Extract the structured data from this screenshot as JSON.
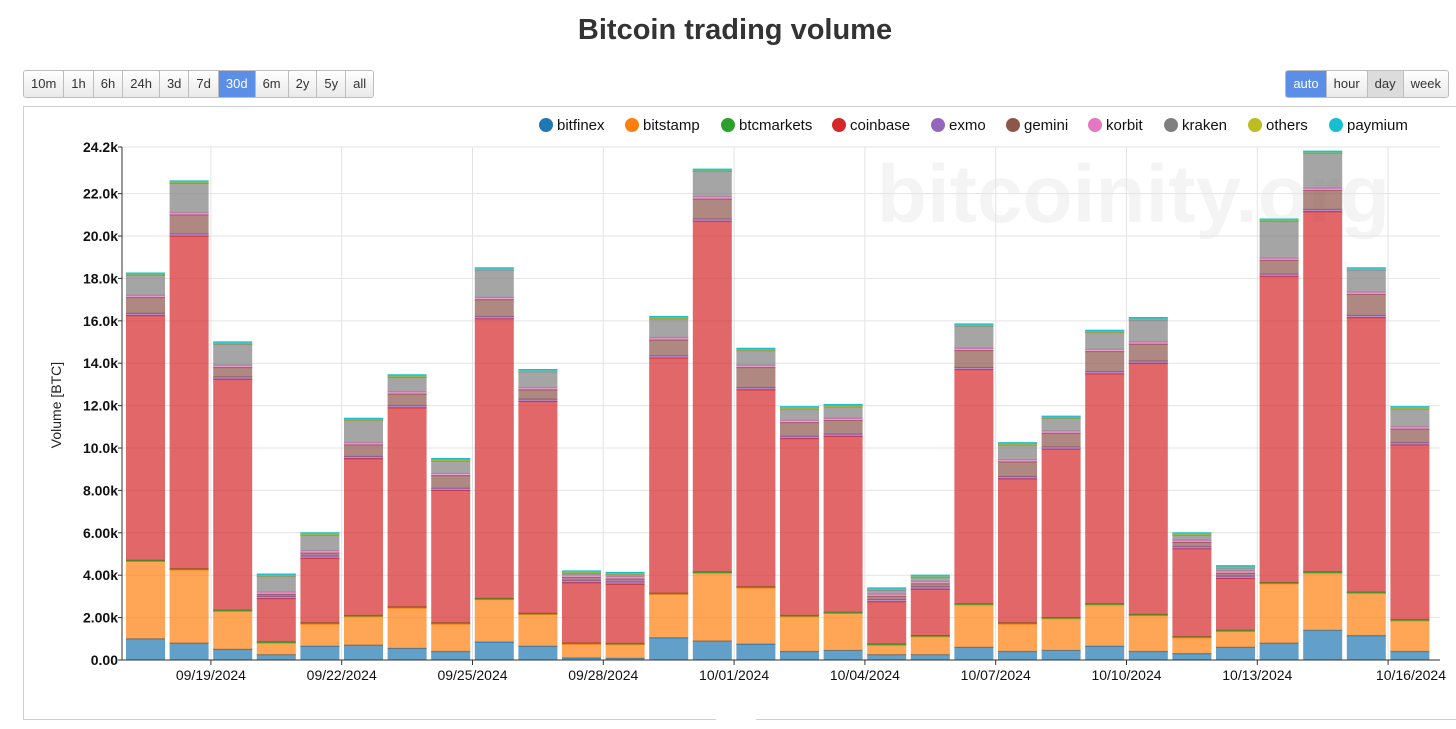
{
  "page": {
    "title": "Bitcoin trading volume"
  },
  "range_buttons": [
    {
      "label": "10m",
      "active": false
    },
    {
      "label": "1h",
      "active": false
    },
    {
      "label": "6h",
      "active": false
    },
    {
      "label": "24h",
      "active": false
    },
    {
      "label": "3d",
      "active": false
    },
    {
      "label": "7d",
      "active": false
    },
    {
      "label": "30d",
      "active": true
    },
    {
      "label": "6m",
      "active": false
    },
    {
      "label": "2y",
      "active": false
    },
    {
      "label": "5y",
      "active": false
    },
    {
      "label": "all",
      "active": false
    }
  ],
  "interval_buttons": [
    {
      "label": "auto",
      "active": true
    },
    {
      "label": "hour",
      "active": false
    },
    {
      "label": "day",
      "pressed": true
    },
    {
      "label": "week",
      "active": false
    }
  ],
  "watermark": "bitcoinity.org",
  "chart_data": {
    "type": "bar",
    "stacked": true,
    "title": "Bitcoin trading volume",
    "xlabel": "",
    "ylabel": "Volume [BTC]",
    "ylim": [
      0,
      24200
    ],
    "y_tick_values": [
      0,
      2000,
      4000,
      6000,
      8000,
      10000,
      12000,
      14000,
      16000,
      18000,
      20000,
      22000,
      24200
    ],
    "y_tick_labels": [
      "0.00",
      "2.00k",
      "4.00k",
      "6.00k",
      "8.00k",
      "10.0k",
      "12.0k",
      "14.0k",
      "16.0k",
      "18.0k",
      "20.0k",
      "22.0k",
      "24.2k"
    ],
    "x_tick_labels": [
      {
        "index": 2,
        "label": "09/19/2024"
      },
      {
        "index": 5,
        "label": "09/22/2024"
      },
      {
        "index": 8,
        "label": "09/25/2024"
      },
      {
        "index": 11,
        "label": "09/28/2024"
      },
      {
        "index": 14,
        "label": "10/01/2024"
      },
      {
        "index": 17,
        "label": "10/04/2024"
      },
      {
        "index": 20,
        "label": "10/07/2024"
      },
      {
        "index": 23,
        "label": "10/10/2024"
      },
      {
        "index": 26,
        "label": "10/13/2024"
      },
      {
        "index": 29,
        "label": "10/16/2024"
      }
    ],
    "categories": [
      "09/17/2024",
      "09/18/2024",
      "09/19/2024",
      "09/20/2024",
      "09/21/2024",
      "09/22/2024",
      "09/23/2024",
      "09/24/2024",
      "09/25/2024",
      "09/26/2024",
      "09/27/2024",
      "09/28/2024",
      "09/29/2024",
      "09/30/2024",
      "10/01/2024",
      "10/02/2024",
      "10/03/2024",
      "10/04/2024",
      "10/05/2024",
      "10/06/2024",
      "10/07/2024",
      "10/08/2024",
      "10/09/2024",
      "10/10/2024",
      "10/11/2024",
      "10/12/2024",
      "10/13/2024",
      "10/14/2024",
      "10/15/2024",
      "10/16/2024"
    ],
    "legend": {
      "placement": "top-right"
    },
    "grid": true,
    "series": [
      {
        "name": "bitfinex",
        "color": "#1f77b4",
        "values": [
          1000,
          800,
          500,
          250,
          650,
          700,
          550,
          400,
          850,
          650,
          100,
          80,
          1050,
          900,
          750,
          400,
          450,
          250,
          250,
          600,
          400,
          450,
          650,
          400,
          300,
          600,
          800,
          1400,
          1150,
          400
        ]
      },
      {
        "name": "bitstamp",
        "color": "#ff7f0e",
        "values": [
          3650,
          3450,
          1800,
          550,
          1050,
          1350,
          1900,
          1300,
          2000,
          1500,
          650,
          650,
          2050,
          3200,
          2650,
          1650,
          1750,
          450,
          850,
          2000,
          1300,
          1500,
          1950,
          1700,
          750,
          750,
          2800,
          2700,
          2000,
          1450
        ]
      },
      {
        "name": "btcmarkets",
        "color": "#2ca02c",
        "values": [
          50,
          50,
          50,
          50,
          50,
          50,
          50,
          50,
          50,
          50,
          50,
          50,
          50,
          50,
          50,
          50,
          50,
          50,
          50,
          50,
          50,
          50,
          50,
          50,
          50,
          50,
          50,
          50,
          50,
          50
        ]
      },
      {
        "name": "coinbase",
        "color": "#d62728",
        "values": [
          11550,
          15700,
          10900,
          2050,
          3050,
          7400,
          9400,
          6250,
          13200,
          10000,
          2850,
          2800,
          11100,
          16550,
          9300,
          8350,
          8300,
          2000,
          2200,
          11050,
          6800,
          7950,
          10850,
          11850,
          4150,
          2450,
          14450,
          17000,
          12950,
          8250
        ]
      },
      {
        "name": "exmo",
        "color": "#9467bd",
        "values": [
          100,
          100,
          100,
          100,
          100,
          100,
          100,
          100,
          100,
          100,
          100,
          100,
          100,
          100,
          100,
          100,
          100,
          100,
          100,
          100,
          100,
          100,
          100,
          100,
          100,
          100,
          100,
          100,
          100,
          100
        ]
      },
      {
        "name": "gemini",
        "color": "#8c564b",
        "values": [
          750,
          900,
          450,
          100,
          150,
          550,
          550,
          600,
          800,
          450,
          150,
          150,
          750,
          950,
          950,
          650,
          650,
          150,
          150,
          800,
          700,
          650,
          950,
          800,
          200,
          150,
          650,
          900,
          1000,
          650
        ]
      },
      {
        "name": "korbit",
        "color": "#e377c2",
        "values": [
          100,
          100,
          100,
          100,
          100,
          100,
          100,
          100,
          100,
          100,
          100,
          100,
          100,
          100,
          100,
          100,
          100,
          100,
          100,
          100,
          100,
          100,
          100,
          100,
          100,
          100,
          100,
          100,
          100,
          100
        ]
      },
      {
        "name": "kraken",
        "color": "#7f7f7f",
        "values": [
          950,
          1400,
          1000,
          750,
          750,
          1050,
          700,
          600,
          1300,
          750,
          100,
          100,
          900,
          1200,
          700,
          550,
          550,
          200,
          200,
          1050,
          700,
          600,
          800,
          1050,
          250,
          150,
          1750,
          1650,
          1050,
          850
        ]
      },
      {
        "name": "others",
        "color": "#bcbd22",
        "values": [
          30,
          30,
          30,
          30,
          30,
          30,
          30,
          30,
          30,
          30,
          30,
          30,
          30,
          30,
          30,
          30,
          30,
          30,
          30,
          30,
          30,
          30,
          30,
          30,
          30,
          30,
          30,
          30,
          30,
          30
        ]
      },
      {
        "name": "paymium",
        "color": "#17becf",
        "values": [
          70,
          70,
          70,
          70,
          70,
          70,
          70,
          70,
          70,
          70,
          70,
          70,
          70,
          70,
          70,
          70,
          70,
          70,
          70,
          70,
          70,
          70,
          70,
          70,
          70,
          70,
          70,
          70,
          70,
          70
        ]
      }
    ]
  }
}
